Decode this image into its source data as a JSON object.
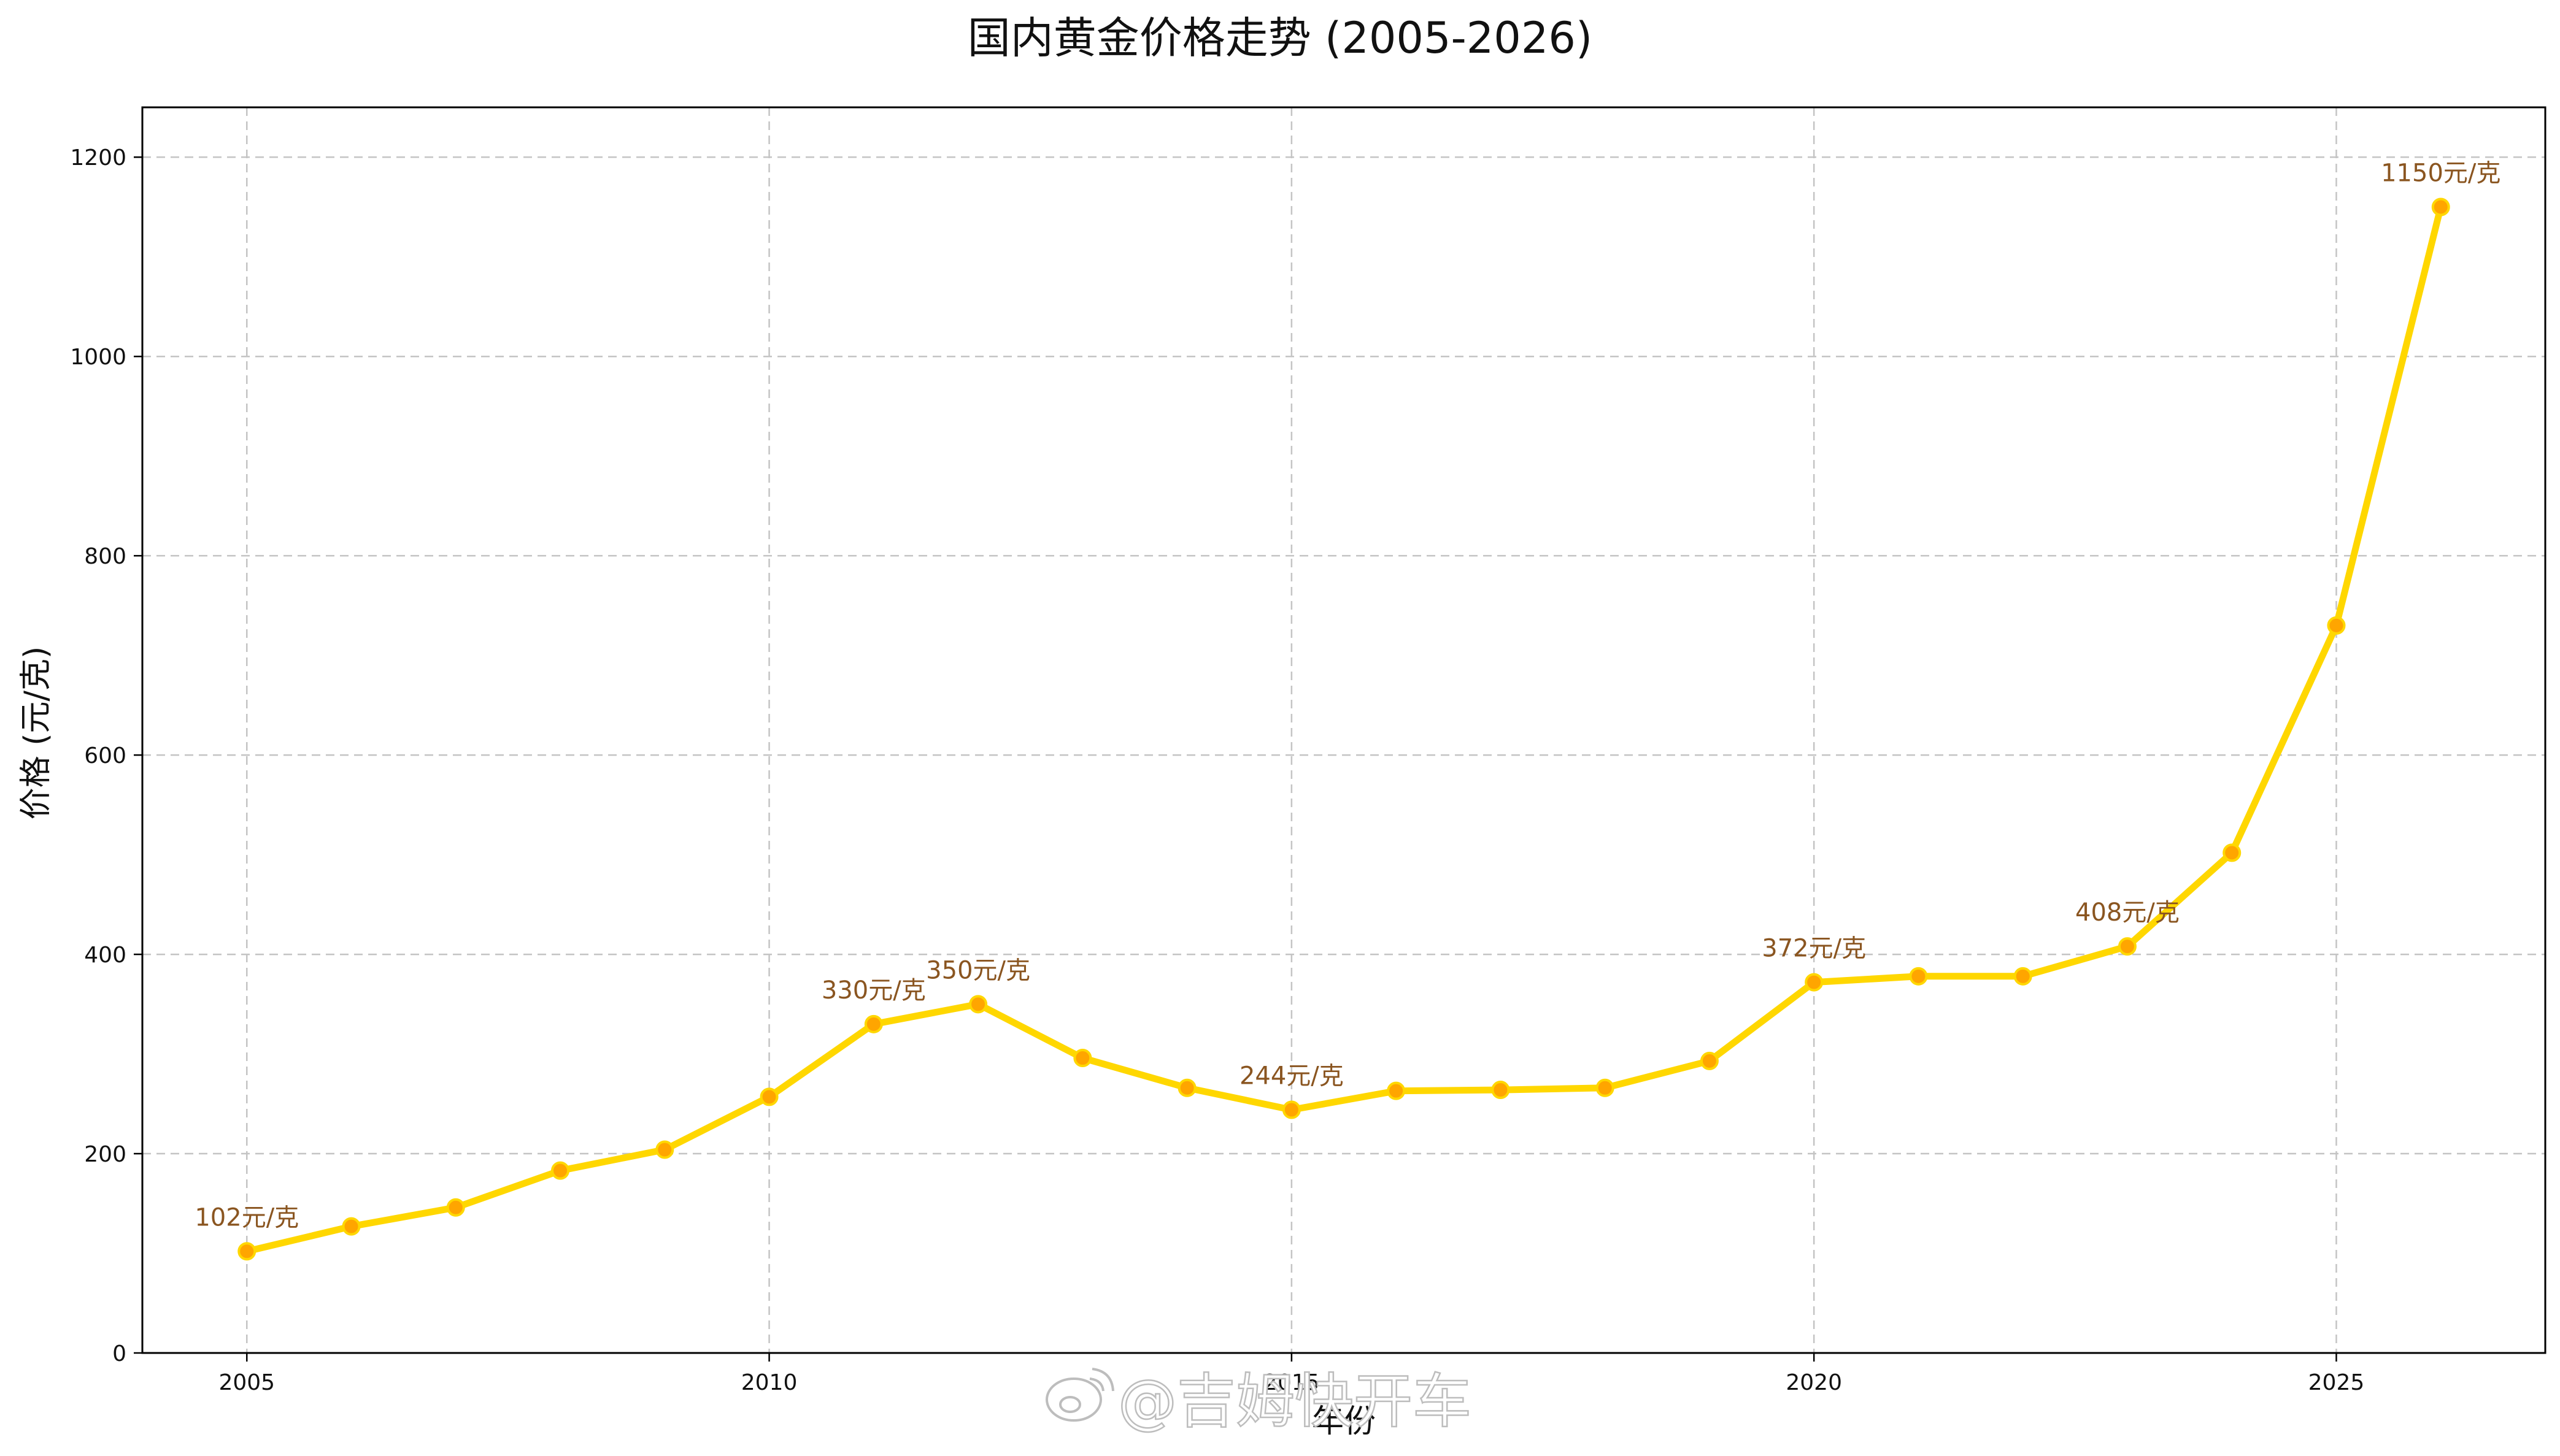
{
  "chart_data": {
    "type": "line",
    "title": "国内黄金价格走势 (2005-2026)",
    "xlabel": "年份",
    "ylabel": "价格 (元/克)",
    "x": [
      2005,
      2006,
      2007,
      2008,
      2009,
      2010,
      2011,
      2012,
      2013,
      2014,
      2015,
      2016,
      2017,
      2018,
      2019,
      2020,
      2021,
      2022,
      2023,
      2024,
      2025,
      2026
    ],
    "series": [
      {
        "name": "",
        "values": [
          102,
          127,
          146,
          183,
          204,
          257,
          330,
          350,
          296,
          266,
          244,
          263,
          264,
          266,
          293,
          372,
          378,
          378,
          408,
          502,
          730,
          1150
        ]
      }
    ],
    "xlim": [
      2004,
      2027
    ],
    "ylim": [
      0,
      1250
    ],
    "x_ticks": [
      2005,
      2010,
      2015,
      2020,
      2025
    ],
    "y_ticks": [
      0,
      200,
      400,
      600,
      800,
      1000,
      1200
    ],
    "grid": true,
    "legend": "none",
    "line_color": "#FFD700",
    "marker_color": "#FFA500",
    "annotation_color": "#8B4513",
    "annotations": [
      {
        "x": 2005,
        "y": 102,
        "text": "102元/克"
      },
      {
        "x": 2011,
        "y": 330,
        "text": "330元/克"
      },
      {
        "x": 2012,
        "y": 350,
        "text": "350元/克"
      },
      {
        "x": 2015,
        "y": 244,
        "text": "244元/克"
      },
      {
        "x": 2020,
        "y": 372,
        "text": "372元/克"
      },
      {
        "x": 2023,
        "y": 408,
        "text": "408元/克"
      },
      {
        "x": 2026,
        "y": 1150,
        "text": "1150元/克"
      }
    ]
  },
  "watermark": {
    "text": "@吉姆快开车",
    "icon": "weibo-logo-icon"
  }
}
